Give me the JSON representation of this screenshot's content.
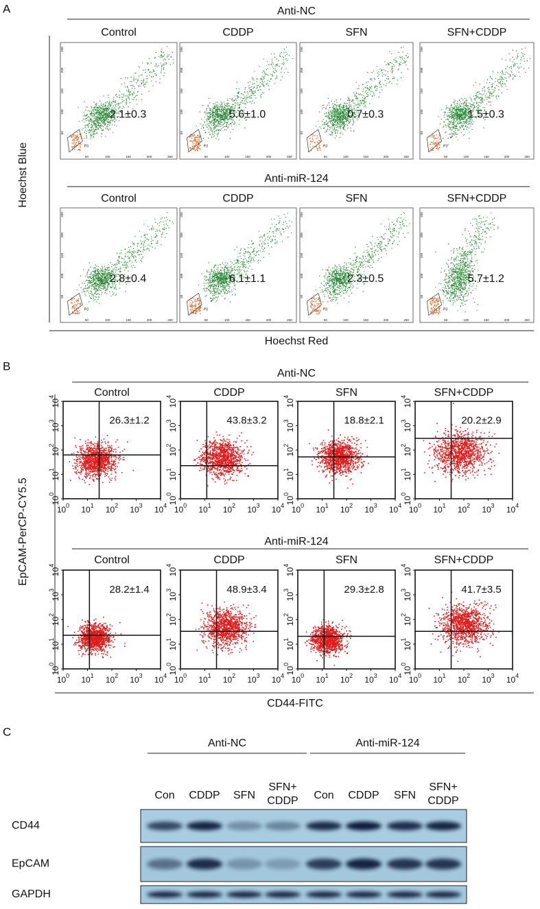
{
  "panel_a": {
    "letter": "A",
    "groups": [
      {
        "name": "Anti-NC",
        "plots": [
          {
            "title": "Control",
            "value": "2.1±0.3"
          },
          {
            "title": "CDDP",
            "value": "5.6±1.0"
          },
          {
            "title": "SFN",
            "value": "0.7±0.3"
          },
          {
            "title": "SFN+CDDP",
            "value": "1.5±0.3"
          }
        ]
      },
      {
        "name": "Anti-miR-124",
        "plots": [
          {
            "title": "Control",
            "value": "2.8±0.4"
          },
          {
            "title": "CDDP",
            "value": "6.1±1.1"
          },
          {
            "title": "SFN",
            "value": "2.3±0.5"
          },
          {
            "title": "SFN+CDDP",
            "value": "5.7±1.2"
          }
        ]
      }
    ],
    "y_label": "Hoechst Blue",
    "x_label": "Hoechst Red",
    "ticks": [
      "50",
      "100",
      "150",
      "200",
      "250"
    ],
    "gate": "P3"
  },
  "panel_b": {
    "letter": "B",
    "groups": [
      {
        "name": "Anti-NC",
        "plots": [
          {
            "title": "Control",
            "value": "26.3±1.2"
          },
          {
            "title": "CDDP",
            "value": "43.8±3.2"
          },
          {
            "title": "SFN",
            "value": "18.8±2.1"
          },
          {
            "title": "SFN+CDDP",
            "value": "20.2±2.9"
          }
        ]
      },
      {
        "name": "Anti-miR-124",
        "plots": [
          {
            "title": "Control",
            "value": "28.2±1.4"
          },
          {
            "title": "CDDP",
            "value": "48.9±3.4"
          },
          {
            "title": "SFN",
            "value": "29.3±2.8"
          },
          {
            "title": "SFN+CDDP",
            "value": "41.7±3.5"
          }
        ]
      }
    ],
    "y_label": "EpCAM-PerCP-CY5.5",
    "x_label": "CD44-FITC",
    "tick_base": "10",
    "tick_exponents": [
      "0",
      "1",
      "2",
      "3",
      "4"
    ]
  },
  "panel_c": {
    "letter": "C",
    "groups": [
      {
        "name": "Anti-NC",
        "lanes": [
          [
            "Con"
          ],
          [
            "CDDP"
          ],
          [
            "SFN"
          ],
          [
            "SFN+",
            "CDDP"
          ]
        ]
      },
      {
        "name": "Anti-miR-124",
        "lanes": [
          [
            "Con"
          ],
          [
            "CDDP"
          ],
          [
            "SFN"
          ],
          [
            "SFN+",
            "CDDP"
          ]
        ]
      }
    ],
    "rows": [
      "CD44",
      "EpCAM",
      "GAPDH"
    ]
  }
}
